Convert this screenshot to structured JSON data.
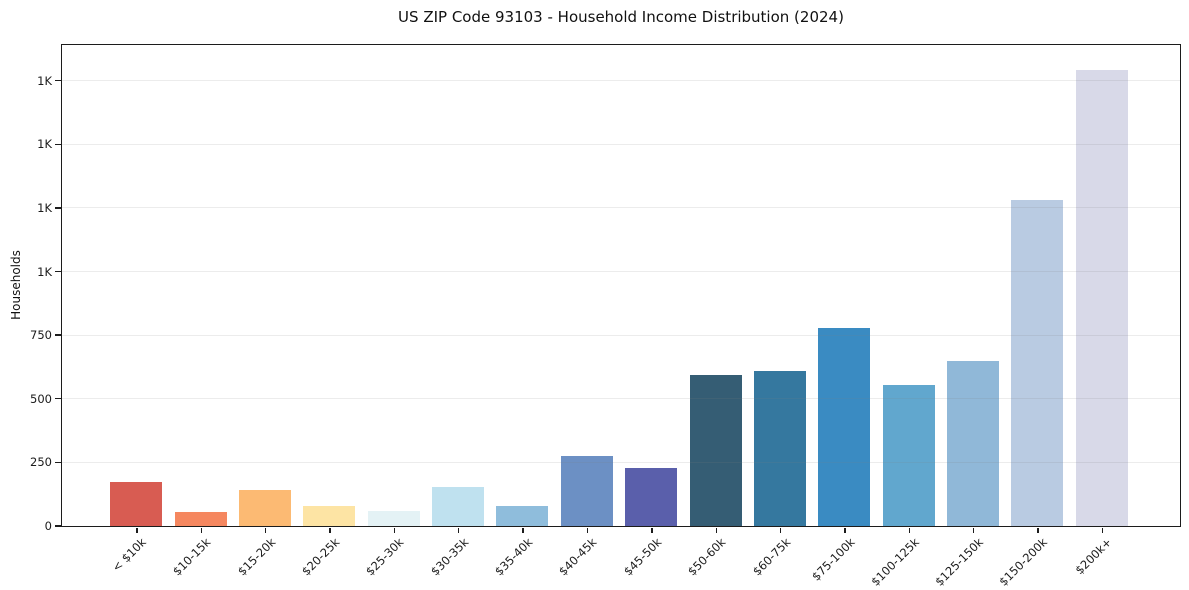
{
  "chart_data": {
    "type": "bar",
    "title": "US ZIP Code 93103 - Household Income Distribution (2024)",
    "xlabel": "",
    "ylabel": "Households",
    "categories": [
      "< $10k",
      "$10-15k",
      "$15-20k",
      "$20-25k",
      "$25-30k",
      "$30-35k",
      "$35-40k",
      "$40-45k",
      "$45-50k",
      "$50-60k",
      "$60-75k",
      "$75-100k",
      "$100-125k",
      "$125-150k",
      "$150-200k",
      "$200k+"
    ],
    "values": [
      172,
      57,
      141,
      79,
      59,
      155,
      77,
      276,
      229,
      593,
      610,
      777,
      555,
      649,
      1280,
      1793
    ],
    "bar_colors": [
      "#d85c52",
      "#f5875f",
      "#fcba73",
      "#fde4a4",
      "#e4f2f5",
      "#bfe1ef",
      "#8fbddc",
      "#6c90c4",
      "#5a5fab",
      "#355d74",
      "#35789f",
      "#3a8bc2",
      "#61a7ce",
      "#90b8d8",
      "#b9cbe2",
      "#d8d9e8"
    ],
    "y_ticks": [
      {
        "value": 0,
        "label": "0"
      },
      {
        "value": 250,
        "label": "250"
      },
      {
        "value": 500,
        "label": "500"
      },
      {
        "value": 750,
        "label": "750"
      },
      {
        "value": 1000,
        "label": "1K"
      },
      {
        "value": 1250,
        "label": "1K"
      },
      {
        "value": 1500,
        "label": "1K"
      },
      {
        "value": 1750,
        "label": "1K"
      }
    ],
    "ylim": [
      0,
      1890
    ],
    "x_tick_rotation_deg": 45,
    "grid": "horizontal",
    "legend": "none"
  },
  "colors": {
    "background": "#ffffff",
    "axis": "#1c1c1c",
    "grid": "#80808026",
    "text": "#111111"
  }
}
